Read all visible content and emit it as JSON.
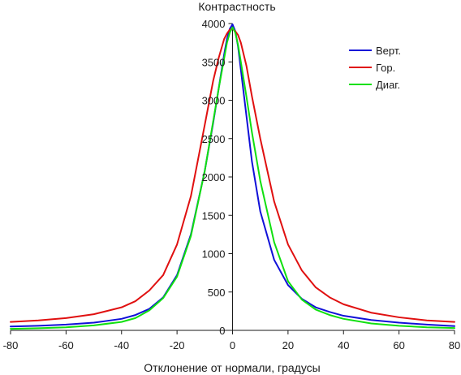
{
  "chart_data": {
    "type": "line",
    "title": "",
    "xlabel": "Отклонение от нормали, градусы",
    "ylabel": "Контрастность",
    "xlim": [
      -80,
      80
    ],
    "ylim": [
      0,
      4000
    ],
    "x_ticks": [
      -80,
      -60,
      -40,
      -20,
      0,
      20,
      40,
      60,
      80
    ],
    "y_ticks": [
      0,
      500,
      1000,
      1500,
      2000,
      2500,
      3000,
      3500,
      4000
    ],
    "grid": false,
    "axes": "zero-crossing",
    "legend_position": "top-right",
    "series": [
      {
        "name": "Верт.",
        "color": "#1010d8",
        "x": [
          -80,
          -70,
          -60,
          -50,
          -40,
          -35,
          -30,
          -25,
          -20,
          -15,
          -10,
          -7,
          -5,
          -3,
          -2,
          -1,
          0,
          1,
          2,
          3,
          5,
          7,
          10,
          15,
          20,
          25,
          30,
          35,
          40,
          50,
          60,
          70,
          80
        ],
        "y": [
          50,
          60,
          75,
          100,
          150,
          200,
          280,
          430,
          720,
          1250,
          2080,
          2700,
          3150,
          3600,
          3800,
          3930,
          3990,
          3900,
          3700,
          3400,
          2800,
          2200,
          1550,
          920,
          590,
          410,
          300,
          240,
          190,
          135,
          100,
          75,
          55
        ]
      },
      {
        "name": "Гор.",
        "color": "#e01010",
        "x": [
          -80,
          -70,
          -60,
          -50,
          -40,
          -35,
          -30,
          -25,
          -20,
          -15,
          -10,
          -7,
          -5,
          -3,
          -2,
          -1,
          0,
          1,
          2,
          3,
          5,
          7,
          10,
          15,
          20,
          25,
          30,
          35,
          40,
          50,
          60,
          70,
          80
        ],
        "y": [
          110,
          130,
          160,
          210,
          300,
          380,
          520,
          720,
          1120,
          1750,
          2680,
          3250,
          3550,
          3800,
          3870,
          3920,
          3930,
          3900,
          3850,
          3750,
          3450,
          3050,
          2500,
          1680,
          1120,
          780,
          560,
          430,
          340,
          230,
          170,
          130,
          110
        ]
      },
      {
        "name": "Диаг.",
        "color": "#10e010",
        "x": [
          -80,
          -70,
          -60,
          -50,
          -40,
          -35,
          -30,
          -25,
          -20,
          -15,
          -10,
          -7,
          -5,
          -3,
          -2,
          -1,
          0,
          1,
          2,
          3,
          5,
          7,
          10,
          15,
          20,
          25,
          30,
          35,
          40,
          50,
          60,
          70,
          80
        ],
        "y": [
          20,
          28,
          40,
          65,
          110,
          160,
          260,
          420,
          700,
          1230,
          2080,
          2720,
          3150,
          3550,
          3750,
          3880,
          3950,
          3880,
          3720,
          3500,
          3050,
          2580,
          1950,
          1150,
          640,
          400,
          270,
          200,
          150,
          90,
          60,
          40,
          30
        ]
      }
    ]
  }
}
